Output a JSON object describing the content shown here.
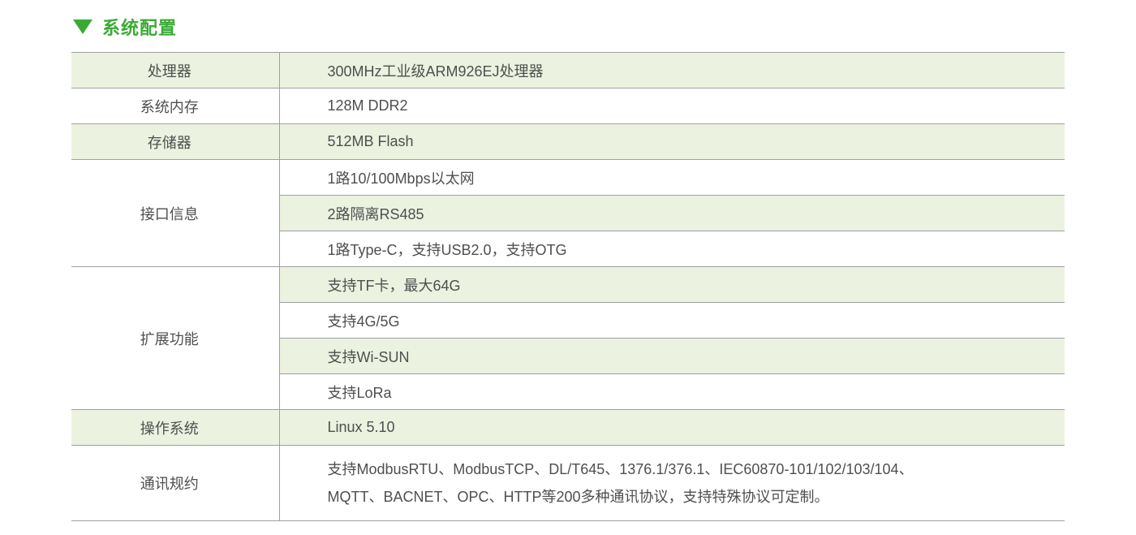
{
  "colors": {
    "accent": "#3aaa35",
    "row-green": "#ebf2e0",
    "border": "#a0a0a0",
    "text": "#4f4f4f"
  },
  "header": {
    "title": "系统配置"
  },
  "table": {
    "groups": [
      {
        "label": "处理器",
        "rows": [
          "300MHz工业级ARM926EJ处理器"
        ]
      },
      {
        "label": "系统内存",
        "rows": [
          "128M DDR2"
        ]
      },
      {
        "label": "存储器",
        "rows": [
          "512MB Flash"
        ]
      },
      {
        "label": "接口信息",
        "rows": [
          "1路10/100Mbps以太网",
          "2路隔离RS485",
          "1路Type-C，支持USB2.0，支持OTG"
        ]
      },
      {
        "label": "扩展功能",
        "rows": [
          "支持TF卡，最大64G",
          "支持4G/5G",
          "支持Wi-SUN",
          "支持LoRa"
        ]
      },
      {
        "label": "操作系统",
        "rows": [
          "Linux 5.10"
        ]
      },
      {
        "label": "通讯规约",
        "rows": [
          "支持ModbusRTU、ModbusTCP、DL/T645、1376.1/376.1、IEC60870-101/102/103/104、\nMQTT、BACNET、OPC、HTTP等200多种通讯协议，支持特殊协议可定制。"
        ]
      }
    ]
  }
}
